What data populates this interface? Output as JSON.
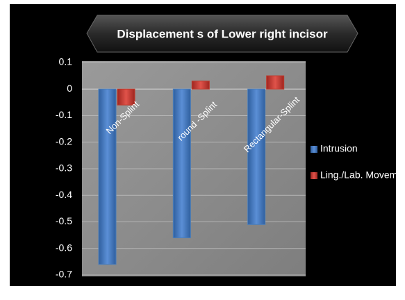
{
  "chart_data": {
    "type": "bar",
    "title": "Displacement s of Lower right incisor",
    "categories": [
      "Non-Splint",
      "round -Splint",
      "Rectangular-Splint"
    ],
    "series": [
      {
        "name": "Intrusion",
        "color": "#4a7ebb",
        "values": [
          -0.66,
          -0.56,
          -0.51
        ]
      },
      {
        "name": "Ling./Lab. Movem",
        "color": "#c0392b",
        "values": [
          -0.06,
          0.03,
          0.05
        ]
      }
    ],
    "ylim": [
      -0.7,
      0.1
    ],
    "yticks": [
      0.1,
      0,
      -0.1,
      -0.2,
      -0.3,
      -0.4,
      -0.5,
      -0.6,
      -0.7
    ],
    "grid": true,
    "legend": "right"
  }
}
